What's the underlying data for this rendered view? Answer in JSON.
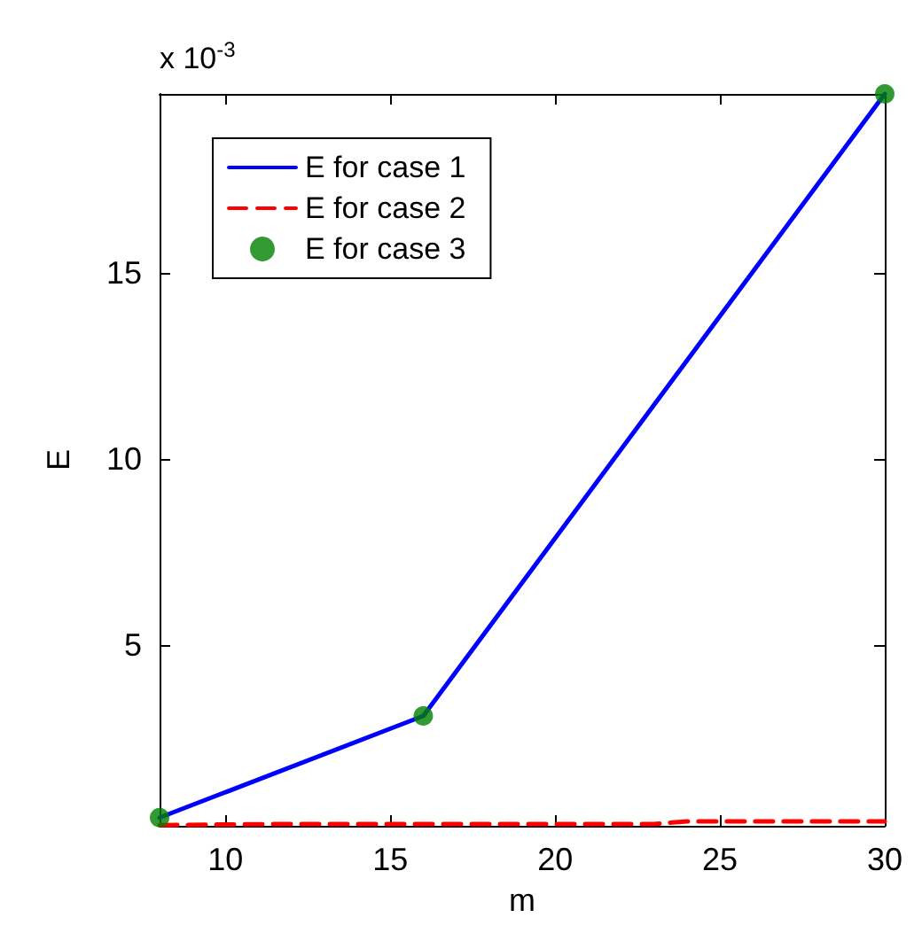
{
  "chart_data": {
    "type": "line",
    "xlabel": "m",
    "ylabel": "E",
    "annotations": [
      "x 10$^{-3}$"
    ],
    "xlim": [
      8,
      30
    ],
    "xticks": [
      10,
      15,
      20,
      25,
      30
    ],
    "ylim": [
      0.15,
      19.8
    ],
    "yticks": [
      5,
      10,
      15
    ],
    "grid": false,
    "legend": "top left",
    "marker": "none",
    "series": [
      {
        "name": "E for case 1",
        "color": "#0000ff",
        "x": [
          8,
          16,
          30
        ],
        "values": [
          0.37,
          3.1,
          19.8
        ],
        "line_style": "solid"
      },
      {
        "name": "E for case 2",
        "color": "#ff0000",
        "x": [
          8,
          12,
          23,
          24,
          30
        ],
        "values": [
          0.17,
          0.2,
          0.2,
          0.27,
          0.27
        ],
        "line_style": "dashed"
      },
      {
        "name": "E for case 3",
        "color": "#007f00",
        "type": "scatter",
        "marker": "circle",
        "x": [
          8,
          16,
          30
        ],
        "values": [
          0.37,
          3.1,
          19.8
        ]
      }
    ]
  }
}
